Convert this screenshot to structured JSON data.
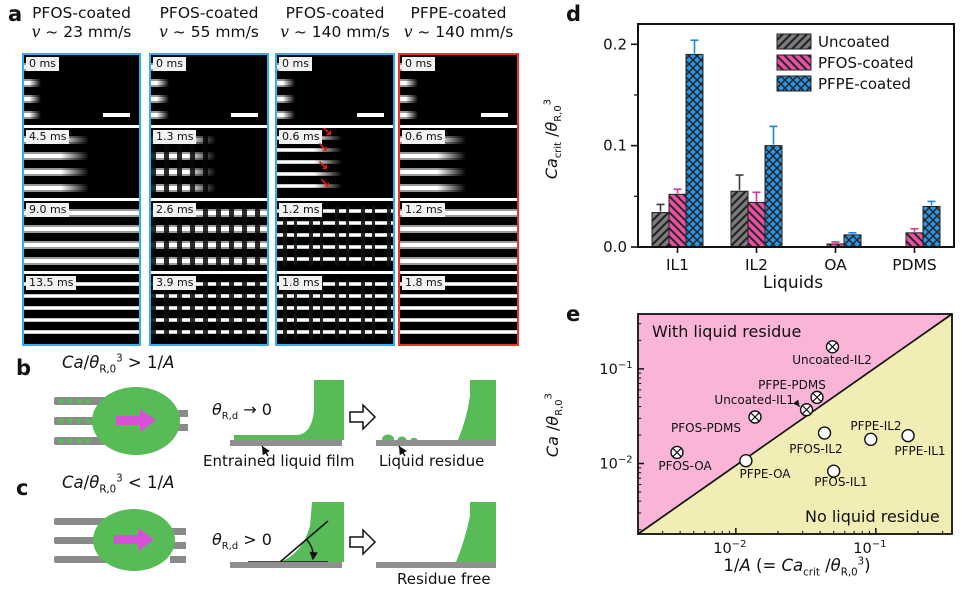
{
  "panel_a": {
    "label": "a",
    "columns": [
      {
        "coating": "PFOS-coated",
        "v": "v",
        "speed": "~ 23 mm/s",
        "border_color": "#35b0e5",
        "frames": [
          {
            "time": "0 ms"
          },
          {
            "time": "4.5 ms"
          },
          {
            "time": "9.0 ms"
          },
          {
            "time": "13.5 ms"
          }
        ]
      },
      {
        "coating": "PFOS-coated",
        "v": "v",
        "speed": "~ 55 mm/s",
        "border_color": "#35b0e5",
        "frames": [
          {
            "time": "0 ms"
          },
          {
            "time": "1.3 ms"
          },
          {
            "time": "2.6 ms"
          },
          {
            "time": "3.9 ms"
          }
        ]
      },
      {
        "coating": "PFOS-coated",
        "v": "v",
        "speed": "~ 140 mm/s",
        "border_color": "#35b0e5",
        "frames": [
          {
            "time": "0 ms"
          },
          {
            "time": "0.6 ms"
          },
          {
            "time": "1.2 ms"
          },
          {
            "time": "1.8 ms"
          }
        ]
      },
      {
        "coating": "PFPE-coated",
        "v": "v",
        "speed": "~ 140 mm/s",
        "border_color": "#e2372c",
        "frames": [
          {
            "time": "0 ms"
          },
          {
            "time": "0.6 ms"
          },
          {
            "time": "1.2 ms"
          },
          {
            "time": "1.8 ms"
          }
        ]
      }
    ]
  },
  "panel_b": {
    "label": "b",
    "formula": {
      "ca": "Ca",
      "slash": "/",
      "theta": "θ",
      "sub": "R,0",
      "sup": "3",
      "rel": " > 1/",
      "a": "A"
    },
    "v": "v",
    "theta": {
      "sym": "θ",
      "sub": "R,d",
      "tail": " → 0"
    },
    "film_label": "Entrained liquid film",
    "residue_label": "Liquid residue"
  },
  "panel_c": {
    "label": "c",
    "formula": {
      "ca": "Ca",
      "slash": "/",
      "theta": "θ",
      "sub": "R,0",
      "sup": "3",
      "rel": " < 1/",
      "a": "A"
    },
    "v": "v",
    "theta": {
      "sym": "θ",
      "sub": "R,d",
      "tail": " > 0"
    },
    "angle": {
      "sym": "θ",
      "sub": "R,d"
    },
    "residue_label": "Residue free"
  },
  "panel_d": {
    "label": "d"
  },
  "panel_e": {
    "label": "e"
  },
  "chart_data": [
    {
      "id": "d",
      "type": "bar",
      "xlabel": "Liquids",
      "ylabel_parts": {
        "ca": "Ca",
        "crit": "crit",
        "slash": " /",
        "theta": "θ",
        "row": "R,0",
        "exp": "3"
      },
      "categories": [
        "IL1",
        "IL2",
        "OA",
        "PDMS"
      ],
      "ylim": [
        0,
        0.22
      ],
      "yticks": [
        0,
        0.1,
        0.2
      ],
      "ytick_labels": [
        "0.0",
        "0.1",
        "0.2"
      ],
      "yticks_minor": [
        0.05,
        0.15
      ],
      "grid": false,
      "legend_position": "top-right-inside",
      "series": [
        {
          "name": "Uncoated",
          "color": "#7d7d7d",
          "hatch": "diag",
          "err_color": "#3a3a3a",
          "values": [
            0.034,
            0.055,
            0,
            0
          ],
          "errors": [
            0.008,
            0.016,
            0,
            0
          ]
        },
        {
          "name": "PFOS-coated",
          "color": "#e8519f",
          "hatch": "diag-back",
          "err_color": "#e0309a",
          "values": [
            0.052,
            0.044,
            0.003,
            0.014
          ],
          "errors": [
            0.005,
            0.01,
            0.002,
            0.004
          ]
        },
        {
          "name": "PFPE-coated",
          "color": "#2b97e0",
          "hatch": "cross",
          "err_color": "#1e86d4",
          "values": [
            0.19,
            0.1,
            0.012,
            0.04
          ],
          "errors": [
            0.014,
            0.019,
            0.002,
            0.005
          ]
        }
      ]
    },
    {
      "id": "e",
      "type": "scatter",
      "xscale": "log",
      "yscale": "log",
      "xlim": [
        0.002,
        0.35
      ],
      "ylim": [
        0.0018,
        0.38
      ],
      "xlabel_parts": {
        "pre": "1/",
        "a": "A",
        "mid": " (= ",
        "ca": "Ca",
        "crit": "crit",
        "slash": " /",
        "theta": "θ",
        "row": "R,0",
        "exp": "3",
        "close": ")"
      },
      "ylabel_parts": {
        "ca": "Ca",
        "slash": " /",
        "theta": "θ",
        "row": "R,0",
        "exp": "3"
      },
      "xticks": [
        {
          "value": 0.01,
          "base": "10",
          "exp": "−2"
        },
        {
          "value": 0.1,
          "base": "10",
          "exp": "−1"
        }
      ],
      "yticks": [
        {
          "value": 0.1,
          "base": "10",
          "exp": "−1"
        },
        {
          "value": 0.01,
          "base": "10",
          "exp": "−2"
        }
      ],
      "boundary_line": "y = x (1/A)",
      "regions": {
        "upper_label": "With liquid residue",
        "upper_color": "#f9b4d8",
        "lower_label": "No liquid residue",
        "lower_color": "#f1edb4"
      },
      "points": [
        {
          "name": "Uncoated-IL2",
          "x": 0.049,
          "y": 0.171,
          "marker": "crossed-circle",
          "residue": true
        },
        {
          "name": "PFPE-PDMS",
          "x": 0.038,
          "y": 0.05,
          "marker": "crossed-circle",
          "residue": true
        },
        {
          "name": "Uncoated-IL1",
          "x": 0.032,
          "y": 0.037,
          "marker": "crossed-circle",
          "residue": true
        },
        {
          "name": "PFOS-PDMS",
          "x": 0.0137,
          "y": 0.031,
          "marker": "crossed-circle",
          "residue": true
        },
        {
          "name": "PFOS-OA",
          "x": 0.0038,
          "y": 0.0131,
          "marker": "crossed-circle",
          "residue": true
        },
        {
          "name": "PFPE-OA",
          "x": 0.0118,
          "y": 0.0107,
          "marker": "open-circle",
          "residue": false
        },
        {
          "name": "PFOS-IL2",
          "x": 0.043,
          "y": 0.021,
          "marker": "open-circle",
          "residue": false
        },
        {
          "name": "PFPE-IL2",
          "x": 0.092,
          "y": 0.018,
          "marker": "open-circle",
          "residue": false
        },
        {
          "name": "PFPE-IL1",
          "x": 0.17,
          "y": 0.0197,
          "marker": "open-circle",
          "residue": false
        },
        {
          "name": "PFOS-IL1",
          "x": 0.05,
          "y": 0.0083,
          "marker": "open-circle",
          "residue": false
        }
      ]
    }
  ]
}
